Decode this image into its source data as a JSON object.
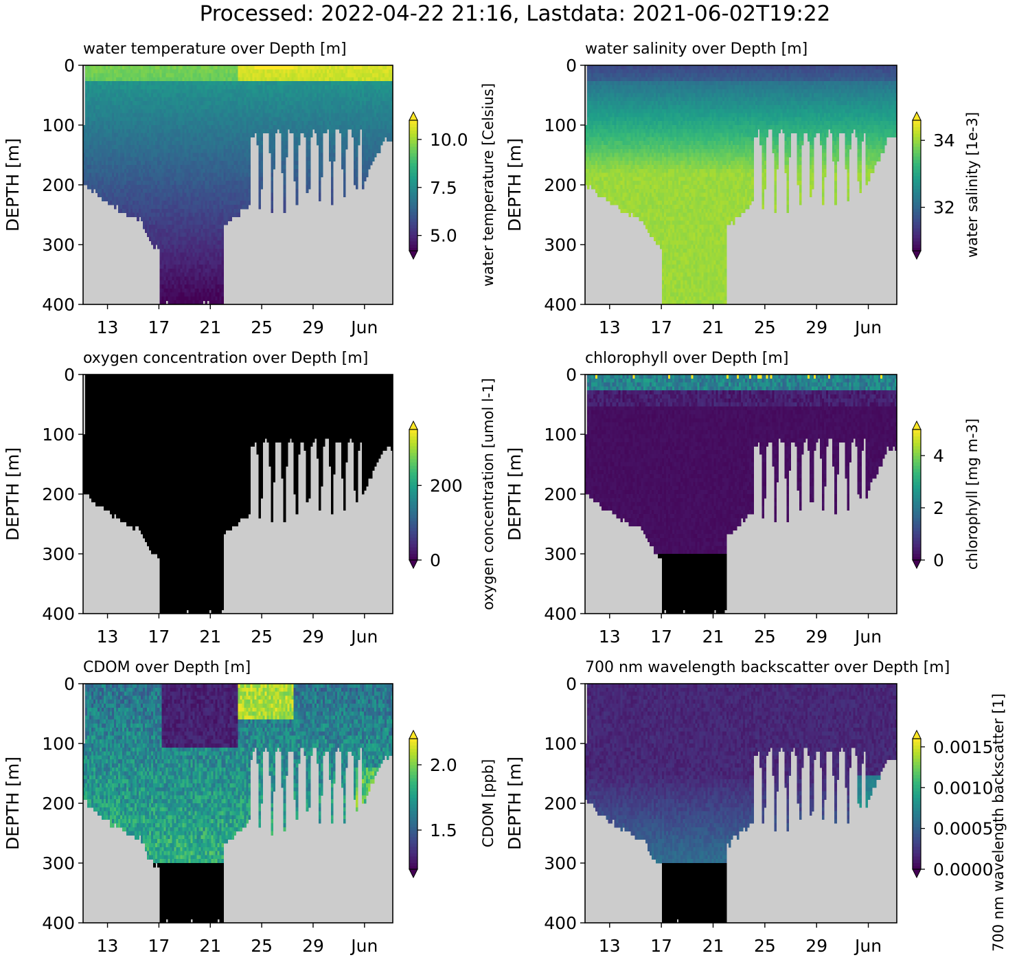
{
  "suptitle": "Processed: 2022-04-22 21:16, Lastdata: 2021-06-02T19:22",
  "colors": {
    "land_gray": "#cccccc",
    "no_data": "#000000",
    "isopycnal": "#808080",
    "viridis": [
      "#440154",
      "#482878",
      "#3e4989",
      "#31688e",
      "#26828e",
      "#1f9e89",
      "#35b779",
      "#6ece58",
      "#b5de2b",
      "#fde725"
    ]
  },
  "chart_data": [
    {
      "type": "heatmap",
      "title": "water temperature over Depth [m]",
      "ylabel": "DEPTH [m]",
      "ylim": [
        400,
        0
      ],
      "yticks": [
        "0",
        "100",
        "200",
        "300",
        "400"
      ],
      "xticks": [
        "13",
        "17",
        "21",
        "25",
        "29",
        "Jun"
      ],
      "colorbar": {
        "label": "water temperature [Celsius]",
        "ticks": [
          "5.0",
          "7.5",
          "10.0"
        ],
        "range": [
          4.2,
          11.0
        ],
        "extend": "both"
      },
      "deep_fill": "data"
    },
    {
      "type": "heatmap",
      "title": "water salinity over Depth [m]",
      "ylabel": "DEPTH [m]",
      "ylim": [
        400,
        0
      ],
      "yticks": [
        "0",
        "100",
        "200",
        "300",
        "400"
      ],
      "xticks": [
        "13",
        "17",
        "21",
        "25",
        "29",
        "Jun"
      ],
      "colorbar": {
        "label": "water salinity [1e-3]",
        "ticks": [
          "32",
          "34"
        ],
        "range": [
          30.7,
          34.6
        ],
        "extend": "both"
      },
      "deep_fill": "data"
    },
    {
      "type": "heatmap",
      "title": "oxygen concentration over Depth [m]",
      "ylabel": "DEPTH [m]",
      "ylim": [
        400,
        0
      ],
      "yticks": [
        "0",
        "100",
        "200",
        "300",
        "400"
      ],
      "xticks": [
        "13",
        "17",
        "21",
        "25",
        "29",
        "Jun"
      ],
      "colorbar": {
        "label": "oxygen concentration [umol l-1]",
        "ticks": [
          "0",
          "200"
        ],
        "range": [
          0,
          350
        ],
        "extend": "both"
      },
      "deep_fill": "none"
    },
    {
      "type": "heatmap",
      "title": "chlorophyll over Depth [m]",
      "ylabel": "DEPTH [m]",
      "ylim": [
        400,
        0
      ],
      "yticks": [
        "0",
        "100",
        "200",
        "300",
        "400"
      ],
      "xticks": [
        "13",
        "17",
        "21",
        "25",
        "29",
        "Jun"
      ],
      "colorbar": {
        "label": "chlorophyll [mg m-3]",
        "ticks": [
          "0",
          "2",
          "4"
        ],
        "range": [
          0,
          5
        ],
        "extend": "both"
      },
      "deep_fill": "black_below_300"
    },
    {
      "type": "heatmap",
      "title": "CDOM over Depth [m]",
      "ylabel": "DEPTH [m]",
      "ylim": [
        400,
        0
      ],
      "yticks": [
        "0",
        "100",
        "200",
        "300",
        "400"
      ],
      "xticks": [
        "13",
        "17",
        "21",
        "25",
        "29",
        "Jun"
      ],
      "colorbar": {
        "label": "CDOM [ppb]",
        "ticks": [
          "1.5",
          "2.0"
        ],
        "range": [
          1.2,
          2.2
        ],
        "extend": "both"
      },
      "deep_fill": "black_below_300"
    },
    {
      "type": "heatmap",
      "title": "700 nm wavelength backscatter over Depth [m]",
      "ylabel": "DEPTH [m]",
      "ylim": [
        400,
        0
      ],
      "yticks": [
        "0",
        "100",
        "200",
        "300",
        "400"
      ],
      "xticks": [
        "13",
        "17",
        "21",
        "25",
        "29",
        "Jun"
      ],
      "colorbar": {
        "label": "700 nm wavelength backscatter [1]",
        "ticks": [
          "0.0000",
          "0.0005",
          "0.0010",
          "0.0015"
        ],
        "range": [
          0,
          0.0016
        ],
        "extend": "both"
      },
      "deep_fill": "black_below_300"
    }
  ]
}
